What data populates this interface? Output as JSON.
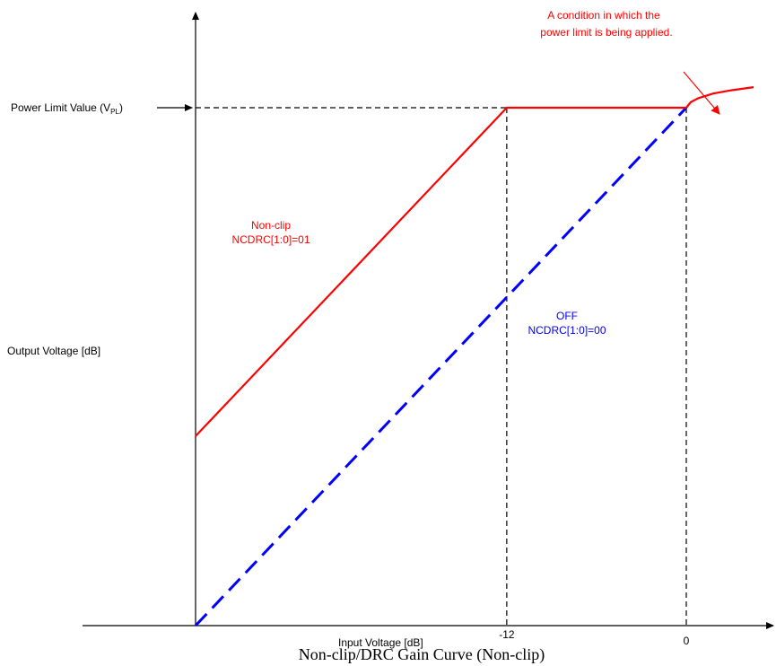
{
  "chart_data": {
    "type": "line",
    "caption": "Non-clip/DRC Gain Curve (Non-clip)",
    "xlabel": "Input Voltage [dB]",
    "ylabel": "Output Voltage [dB]",
    "x_ticks": [
      {
        "value": -12,
        "label": "-12"
      },
      {
        "value": 0,
        "label": "0"
      }
    ],
    "xlim": [
      -32.8,
      5.7
    ],
    "ylim": [
      -32.8,
      1.4
    ],
    "y_reference": {
      "value": 0,
      "label_prefix": "Power Limit Value (V",
      "label_sub": "PL",
      "label_suffix": ")"
    },
    "series": [
      {
        "name": "OFF",
        "setting": "NCDRC[1:0]=00",
        "color": "#0000ff",
        "dash": true,
        "points": [
          [
            -32.8,
            -32.8
          ],
          [
            0,
            0
          ]
        ]
      },
      {
        "name": "Non-clip",
        "setting": "NCDRC[1:0]=01",
        "color": "#ff0000",
        "dash": false,
        "points": [
          [
            -32.8,
            -20.8
          ],
          [
            -12,
            0
          ],
          [
            0,
            0
          ]
        ]
      }
    ],
    "power_limit_curve": {
      "color": "#ff0000",
      "points": [
        [
          0,
          0
        ],
        [
          0.3,
          0.35
        ],
        [
          0.8,
          0.6
        ],
        [
          1.8,
          0.9
        ],
        [
          3.0,
          1.1
        ],
        [
          4.5,
          1.3
        ]
      ]
    },
    "annotation": {
      "lines": [
        "A condition in which the",
        "power limit is being applied."
      ],
      "color": "#ff0000"
    },
    "grid": false
  }
}
